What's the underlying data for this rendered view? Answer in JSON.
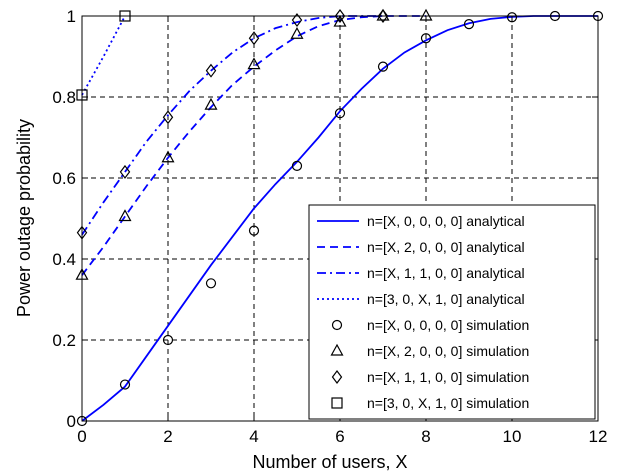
{
  "chart_data": {
    "type": "line",
    "title": "",
    "xlabel": "Number of users, X",
    "ylabel": "Power outage probability",
    "xlim": [
      0,
      12
    ],
    "ylim": [
      0,
      1
    ],
    "xticks": [
      0,
      2,
      4,
      6,
      8,
      10,
      12
    ],
    "yticks": [
      0,
      0.2,
      0.4,
      0.6,
      0.8,
      1
    ],
    "xtick_labels": [
      "0",
      "2",
      "4",
      "6",
      "8",
      "10",
      "12"
    ],
    "ytick_labels": [
      "0",
      "0.2",
      "0.4",
      "0.6",
      "0.8",
      "1"
    ],
    "grid": true,
    "legend_position": "bottom-right",
    "series": [
      {
        "name": "n=[X, 0, 0, 0, 0] analytical",
        "style": "solid",
        "color": "#0000ff",
        "x": [
          0,
          0.5,
          1,
          1.5,
          2,
          2.5,
          3,
          3.5,
          4,
          4.5,
          5,
          5.5,
          6,
          6.5,
          7,
          7.5,
          8,
          8.5,
          9,
          9.5,
          10,
          10.5,
          11,
          11.5,
          12
        ],
        "y": [
          0,
          0.04,
          0.085,
          0.16,
          0.235,
          0.31,
          0.385,
          0.455,
          0.525,
          0.585,
          0.64,
          0.7,
          0.765,
          0.82,
          0.87,
          0.91,
          0.94,
          0.965,
          0.982,
          0.993,
          0.998,
          1,
          1,
          1,
          1
        ]
      },
      {
        "name": "n=[X, 2, 0, 0, 0] analytical",
        "style": "dashed",
        "color": "#0000ff",
        "x": [
          0,
          0.5,
          1,
          1.5,
          2,
          2.5,
          3,
          3.5,
          4,
          4.5,
          5,
          5.5,
          6,
          6.5,
          7,
          7.5,
          8
        ],
        "y": [
          0.36,
          0.43,
          0.505,
          0.58,
          0.65,
          0.715,
          0.775,
          0.83,
          0.875,
          0.915,
          0.95,
          0.975,
          0.99,
          0.997,
          1,
          1,
          1
        ]
      },
      {
        "name": "n=[X, 1, 1, 0, 0] analytical",
        "style": "dashdot",
        "color": "#0000ff",
        "x": [
          0,
          0.5,
          1,
          1.5,
          2,
          2.5,
          3,
          3.5,
          4,
          4.5,
          5,
          5.5,
          6,
          6.5,
          7
        ],
        "y": [
          0.46,
          0.54,
          0.615,
          0.69,
          0.755,
          0.815,
          0.865,
          0.91,
          0.945,
          0.97,
          0.985,
          0.995,
          1,
          1,
          1
        ]
      },
      {
        "name": "n=[3, 0, X, 1, 0] analytical",
        "style": "dotted",
        "color": "#0000ff",
        "x": [
          0,
          0.5,
          1
        ],
        "y": [
          0.805,
          0.9,
          1
        ]
      },
      {
        "name": "n=[X, 0, 0, 0, 0] simulation",
        "marker": "circle",
        "color": "#000000",
        "x": [
          0,
          1,
          2,
          3,
          4,
          5,
          6,
          7,
          8,
          9,
          10,
          11,
          12
        ],
        "y": [
          0,
          0.09,
          0.2,
          0.34,
          0.47,
          0.63,
          0.76,
          0.875,
          0.945,
          0.98,
          0.997,
          1,
          1
        ]
      },
      {
        "name": "n=[X, 2, 0, 0, 0] simulation",
        "marker": "triangle",
        "color": "#000000",
        "x": [
          0,
          1,
          2,
          3,
          4,
          5,
          6,
          7,
          8
        ],
        "y": [
          0.36,
          0.505,
          0.65,
          0.78,
          0.88,
          0.955,
          0.985,
          1,
          1
        ]
      },
      {
        "name": "n=[X, 1, 1, 0, 0] simulation",
        "marker": "diamond",
        "color": "#000000",
        "x": [
          0,
          1,
          2,
          3,
          4,
          5,
          6,
          7
        ],
        "y": [
          0.465,
          0.615,
          0.75,
          0.865,
          0.945,
          0.99,
          1,
          1
        ]
      },
      {
        "name": "n=[3, 0, X, 1, 0] simulation",
        "marker": "square",
        "color": "#000000",
        "x": [
          0,
          1
        ],
        "y": [
          0.805,
          1
        ]
      }
    ]
  }
}
